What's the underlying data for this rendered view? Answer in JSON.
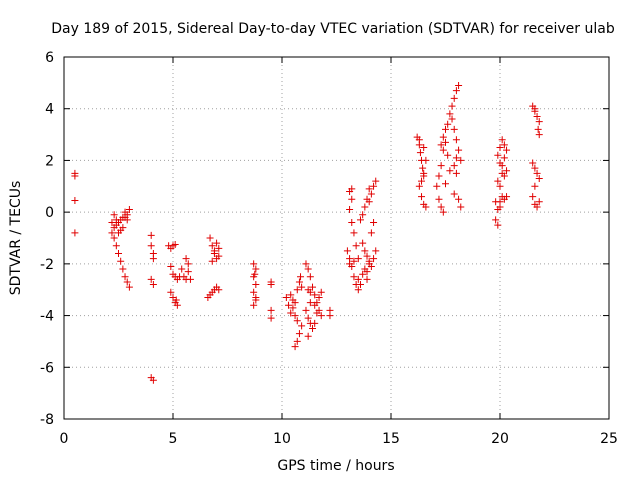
{
  "chart_data": {
    "type": "scatter",
    "title": "Day 189 of 2015, Sidereal Day-to-day VTEC variation (SDTVAR) for receiver ulab",
    "xlabel": "GPS time / hours",
    "ylabel": "SDTVAR / TECUs",
    "xlim": [
      0,
      25
    ],
    "ylim": [
      -8,
      6
    ],
    "xticks": [
      0,
      5,
      10,
      15,
      20,
      25
    ],
    "yticks": [
      -8,
      -6,
      -4,
      -2,
      0,
      2,
      4,
      6
    ],
    "xtick_labels": [
      "0",
      "5",
      "10",
      "15",
      "20",
      "25"
    ],
    "ytick_labels": [
      "-8",
      "-6",
      "-4",
      "-2",
      "0",
      "2",
      "4",
      "6"
    ],
    "marker": "plus",
    "color": "#e00000",
    "grid": true,
    "segments": [
      [
        [
          0.5,
          1.5
        ],
        [
          0.5,
          1.4
        ],
        [
          0.5,
          0.45
        ],
        [
          0.5,
          -0.8
        ]
      ],
      [
        [
          2.2,
          -0.8
        ],
        [
          2.3,
          -1.0
        ],
        [
          2.4,
          -1.3
        ],
        [
          2.5,
          -1.6
        ],
        [
          2.6,
          -1.9
        ],
        [
          2.7,
          -2.2
        ],
        [
          2.8,
          -2.5
        ],
        [
          2.9,
          -2.7
        ],
        [
          3.0,
          -2.9
        ]
      ],
      [
        [
          2.2,
          -0.4
        ],
        [
          2.3,
          -0.6
        ],
        [
          2.4,
          -0.5
        ],
        [
          2.5,
          -0.8
        ],
        [
          2.6,
          -0.3
        ],
        [
          2.7,
          -0.6
        ],
        [
          2.8,
          -0.2
        ],
        [
          2.9,
          -0.1
        ],
        [
          3.0,
          0.1
        ]
      ],
      [
        [
          2.3,
          -0.1
        ],
        [
          2.4,
          -0.3
        ],
        [
          2.5,
          -0.4
        ],
        [
          2.6,
          -0.7
        ],
        [
          2.7,
          -0.2
        ],
        [
          2.8,
          0.0
        ],
        [
          2.9,
          -0.3
        ]
      ],
      [
        [
          4.0,
          -0.9
        ],
        [
          4.0,
          -1.3
        ],
        [
          4.1,
          -1.6
        ],
        [
          4.1,
          -1.8
        ],
        [
          4.0,
          -2.6
        ],
        [
          4.1,
          -2.8
        ],
        [
          4.0,
          -6.4
        ],
        [
          4.1,
          -6.5
        ]
      ],
      [
        [
          4.8,
          -1.3
        ],
        [
          4.9,
          -1.4
        ],
        [
          5.0,
          -1.3
        ],
        [
          5.1,
          -1.25
        ],
        [
          4.9,
          -2.1
        ],
        [
          5.0,
          -2.4
        ],
        [
          5.1,
          -2.5
        ],
        [
          5.2,
          -2.6
        ],
        [
          5.3,
          -2.5
        ]
      ],
      [
        [
          5.4,
          -2.2
        ],
        [
          5.5,
          -2.5
        ],
        [
          5.6,
          -2.6
        ],
        [
          5.7,
          -2.3
        ],
        [
          5.8,
          -2.6
        ],
        [
          5.6,
          -1.8
        ],
        [
          5.7,
          -2.0
        ]
      ],
      [
        [
          4.9,
          -3.1
        ],
        [
          5.0,
          -3.3
        ],
        [
          5.1,
          -3.5
        ],
        [
          5.2,
          -3.6
        ],
        [
          5.15,
          -3.4
        ]
      ],
      [
        [
          6.7,
          -1.0
        ],
        [
          6.8,
          -1.3
        ],
        [
          6.9,
          -1.6
        ],
        [
          7.0,
          -1.8
        ],
        [
          7.1,
          -1.4
        ],
        [
          6.8,
          -1.9
        ],
        [
          6.9,
          -1.5
        ],
        [
          7.0,
          -1.2
        ],
        [
          7.1,
          -1.7
        ]
      ],
      [
        [
          6.6,
          -3.3
        ],
        [
          6.7,
          -3.2
        ],
        [
          6.8,
          -3.1
        ],
        [
          6.9,
          -3.0
        ],
        [
          7.0,
          -2.9
        ],
        [
          7.1,
          -3.0
        ]
      ],
      [
        [
          8.7,
          -2.0
        ],
        [
          8.8,
          -2.2
        ],
        [
          8.7,
          -2.5
        ],
        [
          8.8,
          -2.8
        ],
        [
          8.7,
          -3.1
        ],
        [
          8.8,
          -3.4
        ],
        [
          8.7,
          -3.6
        ],
        [
          8.8,
          -3.3
        ],
        [
          8.75,
          -2.4
        ]
      ],
      [
        [
          9.5,
          -2.7
        ],
        [
          9.5,
          -2.8
        ],
        [
          9.5,
          -3.8
        ],
        [
          9.5,
          -4.1
        ]
      ],
      [
        [
          10.2,
          -3.3
        ],
        [
          10.3,
          -3.6
        ],
        [
          10.4,
          -3.2
        ],
        [
          10.5,
          -3.7
        ],
        [
          10.6,
          -4.0
        ],
        [
          10.7,
          -4.2
        ],
        [
          10.5,
          -3.4
        ],
        [
          10.6,
          -3.5
        ],
        [
          10.4,
          -3.9
        ]
      ],
      [
        [
          10.6,
          -5.2
        ],
        [
          10.7,
          -5.0
        ],
        [
          10.8,
          -4.7
        ],
        [
          10.9,
          -4.4
        ],
        [
          10.7,
          -3.0
        ],
        [
          10.8,
          -2.7
        ],
        [
          10.85,
          -2.5
        ],
        [
          10.9,
          -2.9
        ]
      ],
      [
        [
          11.1,
          -2.0
        ],
        [
          11.2,
          -2.2
        ],
        [
          11.3,
          -2.5
        ],
        [
          11.4,
          -2.9
        ],
        [
          11.5,
          -3.2
        ],
        [
          11.6,
          -3.5
        ],
        [
          11.7,
          -3.8
        ],
        [
          11.8,
          -4.0
        ]
      ],
      [
        [
          11.1,
          -3.8
        ],
        [
          11.2,
          -4.1
        ],
        [
          11.3,
          -4.3
        ],
        [
          11.4,
          -4.5
        ],
        [
          11.2,
          -4.8
        ],
        [
          11.3,
          -3.5
        ],
        [
          11.5,
          -4.3
        ],
        [
          11.6,
          -3.9
        ]
      ],
      [
        [
          11.2,
          -3.0
        ],
        [
          11.3,
          -3.1
        ],
        [
          11.5,
          -3.6
        ],
        [
          11.7,
          -3.3
        ],
        [
          11.8,
          -3.1
        ],
        [
          12.2,
          -3.8
        ],
        [
          12.2,
          -4.0
        ]
      ],
      [
        [
          13.0,
          -1.5
        ],
        [
          13.1,
          -1.8
        ],
        [
          13.2,
          -2.1
        ],
        [
          13.3,
          -2.5
        ],
        [
          13.4,
          -2.8
        ],
        [
          13.5,
          -3.0
        ],
        [
          13.1,
          -2.0
        ],
        [
          13.3,
          -1.9
        ]
      ],
      [
        [
          13.1,
          0.8
        ],
        [
          13.2,
          0.5
        ],
        [
          13.1,
          0.1
        ],
        [
          13.2,
          -0.4
        ],
        [
          13.3,
          -0.8
        ],
        [
          13.4,
          -1.3
        ],
        [
          13.5,
          -1.8
        ],
        [
          13.2,
          0.9
        ]
      ],
      [
        [
          13.6,
          -0.3
        ],
        [
          13.7,
          -0.1
        ],
        [
          13.8,
          0.2
        ],
        [
          13.9,
          0.5
        ],
        [
          14.0,
          0.4
        ],
        [
          14.1,
          0.7
        ],
        [
          14.2,
          1.0
        ],
        [
          14.3,
          1.2
        ],
        [
          14.0,
          0.9
        ]
      ],
      [
        [
          13.7,
          -1.2
        ],
        [
          13.8,
          -1.5
        ],
        [
          13.9,
          -1.7
        ],
        [
          14.0,
          -1.9
        ],
        [
          14.1,
          -2.1
        ],
        [
          14.2,
          -1.8
        ],
        [
          14.3,
          -1.5
        ],
        [
          13.9,
          -2.3
        ]
      ],
      [
        [
          13.5,
          -2.6
        ],
        [
          13.6,
          -2.8
        ],
        [
          13.7,
          -2.4
        ],
        [
          13.8,
          -2.2
        ],
        [
          13.9,
          -2.6
        ],
        [
          14.0,
          -2.0
        ],
        [
          14.1,
          -0.8
        ],
        [
          14.2,
          -0.4
        ]
      ],
      [
        [
          16.2,
          2.9
        ],
        [
          16.3,
          2.6
        ],
        [
          16.35,
          2.3
        ],
        [
          16.4,
          2.0
        ],
        [
          16.45,
          1.7
        ],
        [
          16.5,
          1.4
        ],
        [
          16.3,
          2.8
        ],
        [
          16.5,
          2.5
        ]
      ],
      [
        [
          16.3,
          1.0
        ],
        [
          16.4,
          0.6
        ],
        [
          16.5,
          0.3
        ],
        [
          16.6,
          0.2
        ],
        [
          16.4,
          1.2
        ],
        [
          16.5,
          1.5
        ],
        [
          16.6,
          2.0
        ]
      ],
      [
        [
          17.1,
          1.0
        ],
        [
          17.2,
          0.5
        ],
        [
          17.3,
          0.2
        ],
        [
          17.4,
          0.0
        ],
        [
          17.2,
          1.4
        ],
        [
          17.3,
          1.8
        ],
        [
          17.4,
          2.4
        ]
      ],
      [
        [
          17.3,
          2.6
        ],
        [
          17.4,
          2.9
        ],
        [
          17.5,
          3.2
        ],
        [
          17.6,
          3.4
        ],
        [
          17.5,
          2.7
        ],
        [
          17.6,
          2.2
        ],
        [
          17.7,
          1.6
        ],
        [
          17.5,
          1.1
        ]
      ],
      [
        [
          17.7,
          3.8
        ],
        [
          17.8,
          4.1
        ],
        [
          17.9,
          4.4
        ],
        [
          18.0,
          4.7
        ],
        [
          18.1,
          4.9
        ],
        [
          17.8,
          3.6
        ],
        [
          17.9,
          3.2
        ],
        [
          18.0,
          2.8
        ]
      ],
      [
        [
          17.9,
          1.8
        ],
        [
          18.0,
          2.1
        ],
        [
          18.1,
          2.4
        ],
        [
          18.2,
          2.0
        ],
        [
          18.0,
          1.5
        ],
        [
          18.1,
          0.5
        ],
        [
          18.2,
          0.2
        ],
        [
          17.9,
          0.7
        ]
      ],
      [
        [
          19.8,
          0.4
        ],
        [
          19.9,
          0.1
        ],
        [
          19.8,
          -0.3
        ],
        [
          19.9,
          -0.5
        ],
        [
          20.0,
          0.4
        ],
        [
          20.1,
          0.6
        ],
        [
          20.2,
          0.5
        ],
        [
          20.0,
          0.2
        ]
      ],
      [
        [
          19.9,
          2.2
        ],
        [
          20.0,
          2.5
        ],
        [
          20.1,
          2.8
        ],
        [
          20.2,
          2.6
        ],
        [
          20.3,
          2.4
        ],
        [
          20.0,
          1.9
        ],
        [
          20.1,
          1.5
        ],
        [
          19.9,
          1.2
        ]
      ],
      [
        [
          20.2,
          1.4
        ],
        [
          20.3,
          1.6
        ],
        [
          20.1,
          1.8
        ],
        [
          20.2,
          2.1
        ],
        [
          20.0,
          1.0
        ],
        [
          20.3,
          0.6
        ]
      ],
      [
        [
          21.5,
          4.1
        ],
        [
          21.6,
          3.9
        ],
        [
          21.7,
          3.7
        ],
        [
          21.8,
          3.5
        ],
        [
          21.75,
          3.2
        ],
        [
          21.8,
          3.0
        ],
        [
          21.6,
          4.0
        ]
      ],
      [
        [
          21.5,
          1.9
        ],
        [
          21.6,
          1.7
        ],
        [
          21.7,
          1.5
        ],
        [
          21.8,
          1.3
        ],
        [
          21.6,
          1.0
        ],
        [
          21.5,
          0.6
        ],
        [
          21.6,
          0.3
        ],
        [
          21.7,
          0.2
        ],
        [
          21.8,
          0.4
        ]
      ]
    ]
  }
}
